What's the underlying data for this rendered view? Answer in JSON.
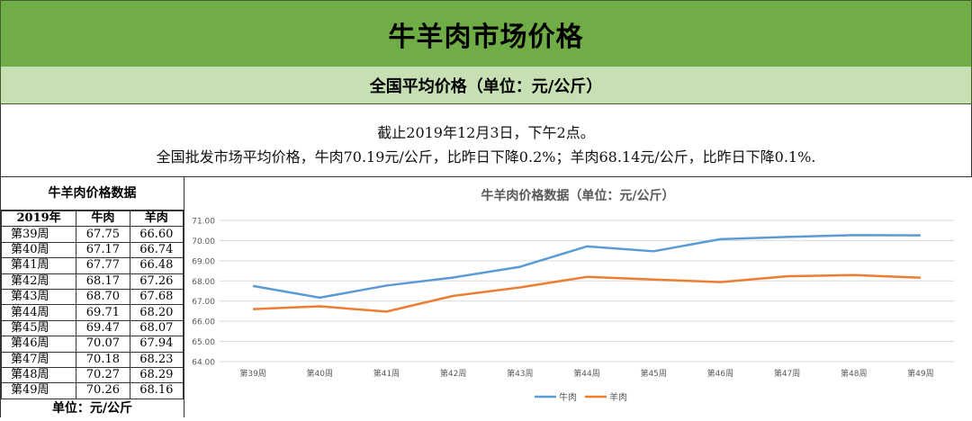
{
  "header": {
    "title": "牛羊肉市场价格",
    "subtitle": "全国平均价格（单位：元/公斤）"
  },
  "info": {
    "line1": "截止2019年12月3日，下午2点。",
    "line2": "全国批发市场平均价格，牛肉70.19元/公斤，比昨日下降0.2%；羊肉68.14元/公斤，比昨日下降0.1%."
  },
  "table": {
    "title": "牛羊肉价格数据",
    "headers": [
      "2019年",
      "牛肉",
      "羊肉"
    ],
    "rows": [
      [
        "第39周",
        "67.75",
        "66.60"
      ],
      [
        "第40周",
        "67.17",
        "66.74"
      ],
      [
        "第41周",
        "67.77",
        "66.48"
      ],
      [
        "第42周",
        "68.17",
        "67.26"
      ],
      [
        "第43周",
        "68.70",
        "67.68"
      ],
      [
        "第44周",
        "69.71",
        "68.20"
      ],
      [
        "第45周",
        "69.47",
        "68.07"
      ],
      [
        "第46周",
        "70.07",
        "67.94"
      ],
      [
        "第47周",
        "70.18",
        "68.23"
      ],
      [
        "第48周",
        "70.27",
        "68.29"
      ],
      [
        "第49周",
        "70.26",
        "68.16"
      ]
    ],
    "unit": "单位：元/公斤"
  },
  "chart_data": {
    "type": "line",
    "title": "牛羊肉价格数据（单位：元/公斤）",
    "categories": [
      "第39周",
      "第40周",
      "第41周",
      "第42周",
      "第43周",
      "第44周",
      "第45周",
      "第46周",
      "第47周",
      "第48周",
      "第49周"
    ],
    "series": [
      {
        "name": "牛肉",
        "color": "#5b9bd5",
        "values": [
          67.75,
          67.17,
          67.77,
          68.17,
          68.7,
          69.71,
          69.47,
          70.07,
          70.18,
          70.27,
          70.26
        ]
      },
      {
        "name": "羊肉",
        "color": "#ed7d31",
        "values": [
          66.6,
          66.74,
          66.48,
          67.26,
          67.68,
          68.2,
          68.07,
          67.94,
          68.23,
          68.29,
          68.16
        ]
      }
    ],
    "ylim": [
      64,
      71
    ],
    "yticks": [
      "64.00",
      "65.00",
      "66.00",
      "67.00",
      "68.00",
      "69.00",
      "70.00",
      "71.00"
    ],
    "grid": true,
    "legend": "bottom-center"
  }
}
